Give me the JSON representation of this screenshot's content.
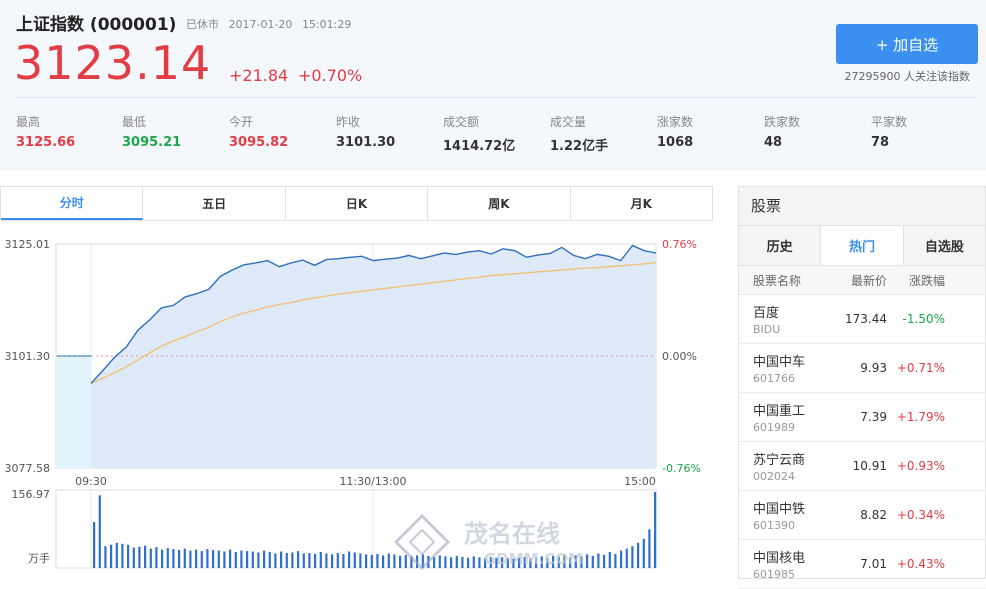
{
  "index": {
    "name": "上证指数",
    "code": "(000001)",
    "status": "已休市",
    "date": "2017-01-20",
    "time": "15:01:29",
    "price": "3123.14",
    "change": "+21.84",
    "change_pct": "+0.70%"
  },
  "actions": {
    "add_label": "+ 加自选",
    "followers": "27295900 人关注该指数"
  },
  "stats": [
    {
      "label": "最高",
      "value": "3125.66",
      "tone": "up"
    },
    {
      "label": "最低",
      "value": "3095.21",
      "tone": "down"
    },
    {
      "label": "今开",
      "value": "3095.82",
      "tone": "up"
    },
    {
      "label": "昨收",
      "value": "3101.30",
      "tone": "flat"
    },
    {
      "label": "成交额",
      "value": "1414.72亿",
      "tone": "flat"
    },
    {
      "label": "成交量",
      "value": "1.22亿手",
      "tone": "flat"
    },
    {
      "label": "涨家数",
      "value": "1068",
      "tone": "flat"
    },
    {
      "label": "跌家数",
      "value": "48",
      "tone": "flat"
    },
    {
      "label": "平家数",
      "value": "78",
      "tone": "flat"
    }
  ],
  "tabs": [
    "分时",
    "五日",
    "日K",
    "周K",
    "月K"
  ],
  "active_tab": 0,
  "colors": {
    "up": "#e23c44",
    "down": "#1da64a",
    "accent": "#3a8ff0",
    "price_line": "#2f6fbf",
    "avg_line": "#f0c070",
    "area_fill": "#dfeaf8",
    "volume_bar": "#2f6fd0"
  },
  "sidebar": {
    "title": "股票",
    "tabs": [
      "历史",
      "热门",
      "自选股"
    ],
    "active_tab": 1,
    "columns": [
      "股票名称",
      "最新价",
      "涨跌幅"
    ],
    "rows": [
      {
        "name": "百度",
        "code": "BIDU",
        "price": "173.44",
        "change": "-1.50%",
        "tone": "down"
      },
      {
        "name": "中国中车",
        "code": "601766",
        "price": "9.93",
        "change": "+0.71%",
        "tone": "up"
      },
      {
        "name": "中国重工",
        "code": "601989",
        "price": "7.39",
        "change": "+1.79%",
        "tone": "up"
      },
      {
        "name": "苏宁云商",
        "code": "002024",
        "price": "10.91",
        "change": "+0.93%",
        "tone": "up"
      },
      {
        "name": "中国中铁",
        "code": "601390",
        "price": "8.82",
        "change": "+0.34%",
        "tone": "up"
      },
      {
        "name": "中国核电",
        "code": "601985",
        "price": "7.01",
        "change": "+0.43%",
        "tone": "up"
      }
    ]
  },
  "watermark": {
    "line1": "茂名在线",
    "line2": "GDMM.COM"
  },
  "chart_data": {
    "type": "line",
    "y_ticks_left": [
      "3125.01",
      "3101.30",
      "3077.58"
    ],
    "y_ticks_right": [
      "0.76%",
      "0.00%",
      "-0.76%"
    ],
    "x_ticks": [
      "09:30",
      "11:30/13:00",
      "15:00"
    ],
    "ylim": [
      3077.58,
      3125.01
    ],
    "prev_close": 3101.3,
    "series": [
      {
        "x": [
          "09:30",
          "09:35",
          "09:40",
          "09:45",
          "09:50",
          "09:55",
          "10:00",
          "10:05",
          "10:10",
          "10:15",
          "10:20",
          "10:25",
          "10:30",
          "10:35",
          "10:40",
          "10:45",
          "10:50",
          "10:55",
          "11:00",
          "11:05",
          "11:10",
          "11:15",
          "11:20",
          "11:25",
          "11:30",
          "13:05",
          "13:10",
          "13:15",
          "13:20",
          "13:25",
          "13:30",
          "13:35",
          "13:40",
          "13:45",
          "13:50",
          "13:55",
          "14:00",
          "14:05",
          "14:10",
          "14:15",
          "14:20",
          "14:25",
          "14:30",
          "14:35",
          "14:40",
          "14:45",
          "14:50",
          "14:55",
          "15:00"
        ],
        "values": [
          3095.5,
          3098.2,
          3101.0,
          3103.2,
          3106.8,
          3109.0,
          3111.5,
          3112.0,
          3113.8,
          3114.5,
          3115.4,
          3118.2,
          3119.5,
          3120.6,
          3121.0,
          3121.5,
          3120.2,
          3121.0,
          3121.6,
          3120.5,
          3121.7,
          3121.9,
          3122.2,
          3122.4,
          3121.5,
          3121.8,
          3122.0,
          3122.6,
          3121.9,
          3122.5,
          3123.1,
          3122.8,
          3123.3,
          3123.6,
          3122.9,
          3124.0,
          3123.6,
          3122.2,
          3122.7,
          3123.0,
          3124.3,
          3122.6,
          3121.9,
          3122.8,
          3122.4,
          3121.5,
          3124.7,
          3123.6,
          3123.1
        ]
      },
      {
        "values": [
          3095.5,
          3096.6,
          3097.8,
          3099.0,
          3100.5,
          3102.0,
          3103.4,
          3104.5,
          3105.4,
          3106.4,
          3107.4,
          3108.6,
          3109.6,
          3110.4,
          3111.0,
          3111.7,
          3112.2,
          3112.6,
          3113.2,
          3113.6,
          3114.0,
          3114.4,
          3114.7,
          3115.0,
          3115.3,
          3115.6,
          3115.9,
          3116.2,
          3116.5,
          3116.8,
          3117.1,
          3117.4,
          3117.7,
          3118.0,
          3118.3,
          3118.5,
          3118.7,
          3118.9,
          3119.1,
          3119.3,
          3119.5,
          3119.7,
          3119.9,
          3120.0,
          3120.2,
          3120.4,
          3120.6,
          3120.8,
          3121.1
        ]
      }
    ],
    "volume": {
      "max_label": "156.97",
      "unit": "万手",
      "max": 156.97,
      "values": [
        95,
        150,
        45,
        48,
        52,
        50,
        48,
        42,
        44,
        46,
        40,
        43,
        38,
        41,
        39,
        37,
        40,
        36,
        38,
        35,
        39,
        37,
        36,
        34,
        38,
        33,
        36,
        35,
        34,
        32,
        36,
        33,
        30,
        34,
        31,
        32,
        35,
        30,
        31,
        29,
        33,
        30,
        28,
        31,
        29,
        34,
        32,
        30,
        28,
        27,
        29,
        26,
        30,
        28,
        25,
        27,
        24,
        26,
        28,
        25,
        23,
        26,
        24,
        22,
        25,
        23,
        21,
        24,
        22,
        20,
        23,
        21,
        22,
        20,
        19,
        21,
        23,
        20,
        22,
        24,
        21,
        25,
        23,
        27,
        22,
        26,
        24,
        28,
        25,
        30,
        27,
        33,
        29,
        36,
        40,
        45,
        52,
        60,
        80,
        156.97
      ]
    }
  }
}
